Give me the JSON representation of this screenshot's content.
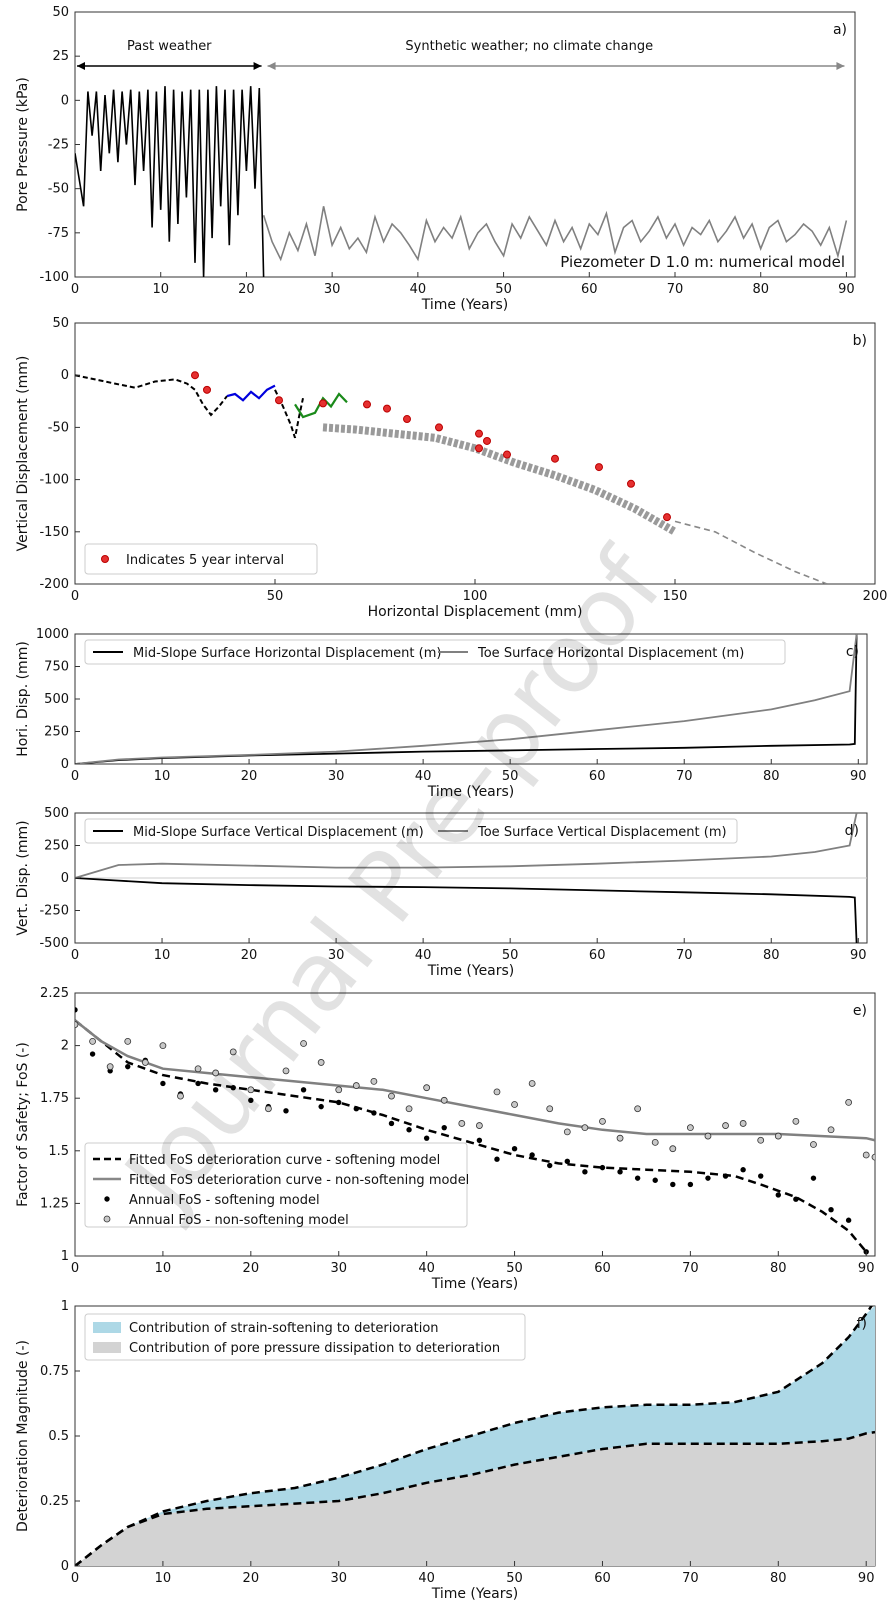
{
  "watermark": "Journal Pre-proof",
  "chart_data": [
    {
      "id": "a",
      "type": "line",
      "panel_label": "a)",
      "xlabel": "Time (Years)",
      "ylabel": "Pore Pressure (kPa)",
      "xlim": [
        0,
        91
      ],
      "ylim": [
        -100,
        50
      ],
      "xticks": [
        0,
        10,
        20,
        30,
        40,
        50,
        60,
        70,
        80,
        90
      ],
      "yticks": [
        -100,
        -75,
        -50,
        -25,
        0,
        25,
        50
      ],
      "annotations": {
        "past": "Past weather",
        "synthetic": "Synthetic weather; no climate change",
        "model": "Piezometer D 1.0 m: numerical model"
      },
      "arrow_split_year": 22,
      "series": [
        {
          "color": "#000000",
          "x": [
            0,
            1,
            1.5,
            2,
            2.5,
            3,
            3.5,
            4,
            4.5,
            5,
            5.5,
            6,
            6.5,
            7,
            7.5,
            8,
            8.5,
            9,
            9.5,
            10,
            10.5,
            11,
            11.5,
            12,
            12.5,
            13,
            13.5,
            14,
            14.5,
            15,
            15.5,
            16,
            16.5,
            17,
            17.5,
            18,
            18.5,
            19,
            19.5,
            20,
            20.5,
            21,
            21.5,
            22
          ],
          "y": [
            -30,
            -60,
            5,
            -20,
            5,
            -40,
            3,
            -30,
            6,
            -35,
            5,
            -25,
            6,
            -48,
            5,
            -40,
            6,
            -72,
            5,
            -62,
            8,
            -80,
            6,
            -70,
            5,
            -55,
            6,
            -92,
            6,
            -100,
            6,
            -78,
            8,
            -60,
            6,
            -82,
            6,
            -65,
            6,
            -40,
            8,
            -50,
            7,
            -100
          ]
        },
        {
          "color": "#808080",
          "x": [
            22,
            23,
            24,
            25,
            26,
            27,
            28,
            29,
            30,
            31,
            32,
            33,
            34,
            35,
            36,
            37,
            38,
            39,
            40,
            41,
            42,
            43,
            44,
            45,
            46,
            47,
            48,
            49,
            50,
            51,
            52,
            53,
            54,
            55,
            56,
            57,
            58,
            59,
            60,
            61,
            62,
            63,
            64,
            65,
            66,
            67,
            68,
            69,
            70,
            71,
            72,
            73,
            74,
            75,
            76,
            77,
            78,
            79,
            80,
            81,
            82,
            83,
            84,
            85,
            86,
            87,
            88,
            89,
            90
          ],
          "y": [
            -65,
            -80,
            -90,
            -75,
            -85,
            -70,
            -88,
            -60,
            -82,
            -72,
            -84,
            -78,
            -86,
            -66,
            -80,
            -70,
            -75,
            -82,
            -90,
            -68,
            -80,
            -72,
            -78,
            -66,
            -84,
            -75,
            -70,
            -80,
            -88,
            -70,
            -78,
            -66,
            -74,
            -82,
            -68,
            -80,
            -72,
            -84,
            -70,
            -76,
            -64,
            -86,
            -72,
            -68,
            -80,
            -74,
            -66,
            -78,
            -70,
            -82,
            -72,
            -76,
            -68,
            -80,
            -74,
            -66,
            -78,
            -70,
            -84,
            -72,
            -68,
            -80,
            -76,
            -70,
            -74,
            -82,
            -72,
            -88,
            -68
          ]
        }
      ]
    },
    {
      "id": "b",
      "type": "scatter",
      "panel_label": "b)",
      "xlabel": "Horizontal Displacement (mm)",
      "ylabel": "Vertical Displacement (mm)",
      "xlim": [
        0,
        200
      ],
      "ylim": [
        -200,
        50
      ],
      "xticks": [
        0,
        50,
        100,
        150,
        200
      ],
      "yticks": [
        -200,
        -150,
        -100,
        -50,
        0,
        50
      ],
      "legend": "Indicates 5 year interval",
      "five_year_markers": {
        "x": [
          30,
          33,
          51,
          62,
          73,
          78,
          83,
          91,
          101,
          103,
          101,
          108,
          120,
          131,
          139,
          148
        ],
        "y": [
          0,
          -14,
          -24,
          -27,
          -28,
          -32,
          -42,
          -50,
          -56,
          -63,
          -70,
          -76,
          -80,
          -88,
          -104,
          -136
        ]
      },
      "path_black": {
        "x": [
          0,
          5,
          10,
          15,
          20,
          25,
          28,
          30,
          32,
          34,
          36,
          38
        ],
        "y": [
          0,
          -4,
          -8,
          -12,
          -6,
          -4,
          -8,
          -14,
          -28,
          -38,
          -30,
          -20
        ]
      },
      "path_blue": {
        "x": [
          38,
          40,
          42,
          44,
          46,
          48,
          50
        ],
        "y": [
          -20,
          -18,
          -24,
          -16,
          -22,
          -14,
          -10
        ]
      },
      "path_black2": {
        "x": [
          50,
          52,
          54,
          55,
          56,
          57
        ],
        "y": [
          -14,
          -30,
          -48,
          -60,
          -40,
          -22
        ]
      },
      "path_green": {
        "x": [
          55,
          57,
          60,
          62,
          64,
          66,
          68
        ],
        "y": [
          -28,
          -40,
          -36,
          -22,
          -30,
          -18,
          -26
        ]
      },
      "path_gray": {
        "x": [
          62,
          70,
          80,
          90,
          100,
          110,
          120,
          130,
          140,
          150
        ],
        "y": [
          -50,
          -52,
          -56,
          -60,
          -70,
          -84,
          -96,
          -110,
          -128,
          -150
        ]
      },
      "dashed_tail": {
        "x": [
          150,
          160,
          170,
          180,
          188
        ],
        "y": [
          -140,
          -150,
          -170,
          -188,
          -200
        ]
      }
    },
    {
      "id": "c",
      "type": "line",
      "panel_label": "c)",
      "xlabel": "Time (Years)",
      "ylabel": "Hori. Disp. (mm)",
      "xlim": [
        0,
        91
      ],
      "ylim": [
        0,
        1000
      ],
      "xticks": [
        0,
        10,
        20,
        30,
        40,
        50,
        60,
        70,
        80,
        90
      ],
      "yticks": [
        0,
        250,
        500,
        750,
        1000
      ],
      "series": [
        {
          "name": "Mid-Slope Surface Horizontal Displacement (m)",
          "color": "#000000",
          "x": [
            0,
            5,
            10,
            20,
            30,
            40,
            50,
            60,
            70,
            80,
            89,
            89.6,
            89.8
          ],
          "y": [
            0,
            30,
            45,
            65,
            80,
            95,
            105,
            115,
            125,
            140,
            150,
            155,
            1000
          ]
        },
        {
          "name": "Toe Surface Horizontal Displacement (m)",
          "color": "#808080",
          "x": [
            0,
            5,
            10,
            20,
            30,
            40,
            50,
            60,
            70,
            80,
            85,
            89,
            89.8
          ],
          "y": [
            0,
            35,
            50,
            70,
            95,
            140,
            190,
            260,
            330,
            420,
            490,
            560,
            1000
          ]
        }
      ]
    },
    {
      "id": "d",
      "type": "line",
      "panel_label": "d)",
      "xlabel": "Time (Years)",
      "ylabel": "Vert. Disp. (mm)",
      "xlim": [
        0,
        91
      ],
      "ylim": [
        -500,
        500
      ],
      "xticks": [
        0,
        10,
        20,
        30,
        40,
        50,
        60,
        70,
        80,
        90
      ],
      "yticks": [
        -500,
        -250,
        0,
        250,
        500
      ],
      "series": [
        {
          "name": "Mid-Slope Surface Vertical Displacement (m)",
          "color": "#000000",
          "x": [
            0,
            5,
            10,
            20,
            30,
            40,
            50,
            60,
            70,
            80,
            89,
            89.6,
            89.8
          ],
          "y": [
            0,
            -20,
            -40,
            -55,
            -65,
            -70,
            -80,
            -95,
            -110,
            -125,
            -145,
            -150,
            -500
          ]
        },
        {
          "name": "Toe Surface Vertical Displacement (m)",
          "color": "#808080",
          "x": [
            0,
            5,
            10,
            20,
            30,
            40,
            50,
            60,
            70,
            80,
            85,
            89,
            89.8
          ],
          "y": [
            0,
            100,
            110,
            95,
            80,
            80,
            90,
            110,
            135,
            165,
            200,
            250,
            500
          ]
        }
      ]
    },
    {
      "id": "e",
      "type": "scatter",
      "panel_label": "e)",
      "xlabel": "Time (Years)",
      "ylabel": "Factor of Safety; FoS (-)",
      "xlim": [
        0,
        91
      ],
      "ylim": [
        1.0,
        2.25
      ],
      "xticks": [
        0,
        10,
        20,
        30,
        40,
        50,
        60,
        70,
        80,
        90
      ],
      "yticks": [
        1.0,
        1.25,
        1.5,
        1.75,
        2.0,
        2.25
      ],
      "series": [
        {
          "name": "Fitted FoS deterioration curve - softening model",
          "style": "dashed",
          "color": "#000000",
          "x": [
            0,
            3,
            6,
            10,
            15,
            20,
            25,
            30,
            35,
            40,
            45,
            50,
            55,
            60,
            65,
            70,
            75,
            78,
            82,
            85,
            88,
            90
          ],
          "y": [
            2.12,
            2.02,
            1.92,
            1.86,
            1.82,
            1.79,
            1.76,
            1.73,
            1.67,
            1.6,
            1.54,
            1.48,
            1.44,
            1.42,
            1.41,
            1.4,
            1.38,
            1.34,
            1.28,
            1.21,
            1.12,
            1.02
          ]
        },
        {
          "name": "Fitted FoS deterioration curve - non-softening model",
          "style": "solid",
          "color": "#808080",
          "x": [
            0,
            3,
            6,
            10,
            15,
            20,
            25,
            30,
            35,
            40,
            45,
            50,
            55,
            60,
            65,
            70,
            75,
            80,
            85,
            90,
            91
          ],
          "y": [
            2.12,
            2.02,
            1.95,
            1.89,
            1.87,
            1.85,
            1.83,
            1.81,
            1.79,
            1.75,
            1.71,
            1.67,
            1.63,
            1.6,
            1.58,
            1.58,
            1.58,
            1.58,
            1.57,
            1.56,
            1.55
          ]
        },
        {
          "name": "Annual FoS - softening model",
          "style": "points-black",
          "x": [
            0,
            2,
            4,
            6,
            8,
            10,
            12,
            14,
            16,
            18,
            20,
            22,
            24,
            26,
            28,
            30,
            32,
            34,
            36,
            38,
            40,
            42,
            44,
            46,
            48,
            50,
            52,
            54,
            56,
            58,
            60,
            62,
            64,
            66,
            68,
            70,
            72,
            74,
            76,
            78,
            80,
            82,
            84,
            86,
            88,
            90
          ],
          "y": [
            2.17,
            1.96,
            1.88,
            1.9,
            1.93,
            1.82,
            1.77,
            1.82,
            1.79,
            1.8,
            1.74,
            1.71,
            1.69,
            1.79,
            1.71,
            1.73,
            1.7,
            1.68,
            1.63,
            1.6,
            1.56,
            1.61,
            1.52,
            1.55,
            1.46,
            1.51,
            1.48,
            1.43,
            1.45,
            1.4,
            1.42,
            1.4,
            1.37,
            1.36,
            1.34,
            1.34,
            1.37,
            1.38,
            1.41,
            1.38,
            1.29,
            1.27,
            1.37,
            1.22,
            1.17,
            1.02
          ]
        },
        {
          "name": "Annual FoS - non-softening model",
          "style": "points-gray",
          "x": [
            0,
            2,
            4,
            6,
            8,
            10,
            12,
            14,
            16,
            18,
            20,
            22,
            24,
            26,
            28,
            30,
            32,
            34,
            36,
            38,
            40,
            42,
            44,
            46,
            48,
            50,
            52,
            54,
            56,
            58,
            60,
            62,
            64,
            66,
            68,
            70,
            72,
            74,
            76,
            78,
            80,
            82,
            84,
            86,
            88,
            90,
            91
          ],
          "y": [
            2.1,
            2.02,
            1.9,
            2.02,
            1.92,
            2.0,
            1.76,
            1.89,
            1.87,
            1.97,
            1.79,
            1.7,
            1.88,
            2.01,
            1.92,
            1.79,
            1.81,
            1.83,
            1.76,
            1.7,
            1.8,
            1.74,
            1.63,
            1.62,
            1.78,
            1.72,
            1.82,
            1.7,
            1.59,
            1.61,
            1.64,
            1.56,
            1.7,
            1.54,
            1.51,
            1.61,
            1.57,
            1.62,
            1.63,
            1.55,
            1.57,
            1.64,
            1.53,
            1.6,
            1.73,
            1.48,
            1.47
          ]
        }
      ]
    },
    {
      "id": "f",
      "type": "area",
      "panel_label": "f)",
      "xlabel": "Time (Years)",
      "ylabel": "Deterioration Magnitude (-)",
      "xlim": [
        0,
        91
      ],
      "ylim": [
        0,
        1.0
      ],
      "xticks": [
        0,
        10,
        20,
        30,
        40,
        50,
        60,
        70,
        80,
        90
      ],
      "yticks": [
        0.0,
        0.25,
        0.5,
        0.75,
        1.0
      ],
      "x": [
        0,
        3,
        6,
        10,
        15,
        20,
        25,
        30,
        35,
        40,
        45,
        50,
        55,
        60,
        65,
        70,
        75,
        80,
        85,
        88,
        90
      ],
      "upper": [
        0,
        0.08,
        0.15,
        0.21,
        0.25,
        0.28,
        0.3,
        0.34,
        0.39,
        0.45,
        0.5,
        0.55,
        0.59,
        0.61,
        0.62,
        0.62,
        0.63,
        0.67,
        0.78,
        0.88,
        0.97
      ],
      "lower": [
        0,
        0.08,
        0.15,
        0.2,
        0.22,
        0.23,
        0.24,
        0.25,
        0.28,
        0.32,
        0.35,
        0.39,
        0.42,
        0.45,
        0.47,
        0.47,
        0.47,
        0.47,
        0.48,
        0.49,
        0.51
      ],
      "legend": [
        {
          "name": "Contribution of strain-softening to deterioration",
          "color": "#add8e6"
        },
        {
          "name": "Contribution of pore pressure dissipation to deterioration",
          "color": "#d3d3d3"
        }
      ]
    }
  ]
}
